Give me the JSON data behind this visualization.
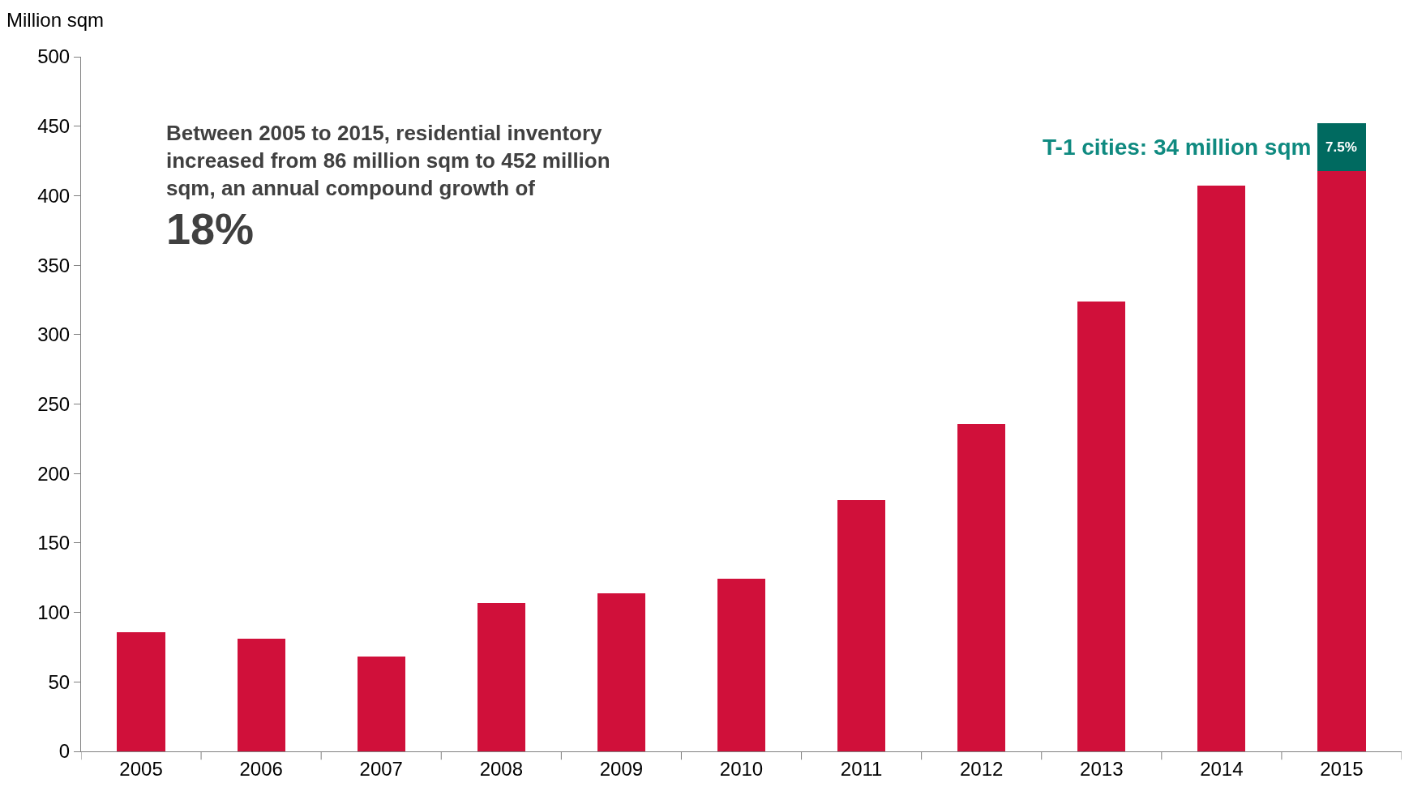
{
  "chart_data": {
    "type": "bar",
    "stacked": true,
    "ylabel": "Million sqm",
    "categories": [
      "2005",
      "2006",
      "2007",
      "2008",
      "2009",
      "2010",
      "2011",
      "2012",
      "2013",
      "2014",
      "2015"
    ],
    "series": [
      {
        "color": "#d0103a",
        "values": [
          86,
          81,
          68,
          107,
          114,
          124,
          181,
          236,
          324,
          407,
          418
        ]
      },
      {
        "color": "#006a60",
        "values": [
          null,
          null,
          null,
          null,
          null,
          null,
          null,
          null,
          null,
          null,
          34
        ]
      }
    ],
    "ylim": [
      0,
      500
    ],
    "yticks": [
      0,
      50,
      100,
      150,
      200,
      250,
      300,
      350,
      400,
      450,
      500
    ],
    "annotations": [
      "Between 2005 to 2015, residential inventory increased from 86 million sqm to 452 million sqm, an annual compound growth of",
      "18%",
      "T-1 cities: 34 million sqm",
      "7.5%"
    ]
  }
}
